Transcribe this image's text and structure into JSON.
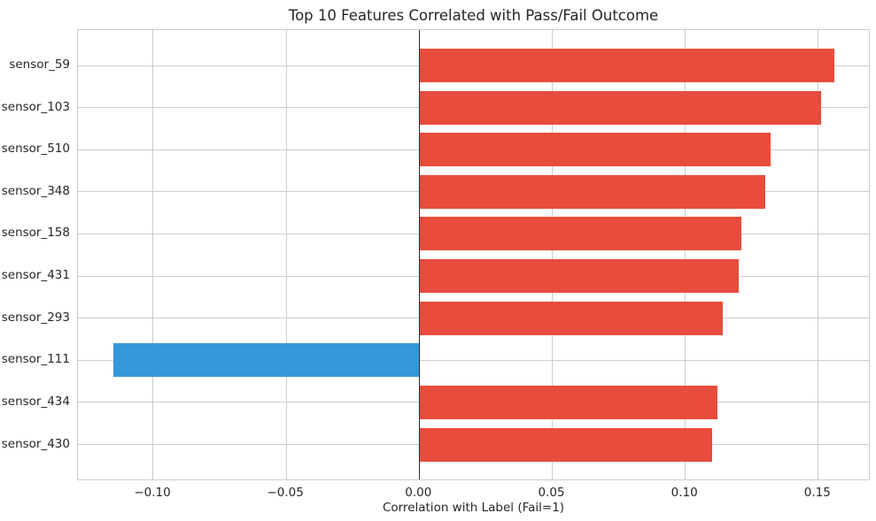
{
  "chart_data": {
    "type": "bar",
    "orientation": "horizontal",
    "title": "Top 10 Features Correlated with Pass/Fail Outcome",
    "xlabel": "Correlation with Label (Fail=1)",
    "ylabel": "",
    "categories": [
      "sensor_59",
      "sensor_103",
      "sensor_510",
      "sensor_348",
      "sensor_158",
      "sensor_431",
      "sensor_293",
      "sensor_111",
      "sensor_434",
      "sensor_430"
    ],
    "values": [
      0.156,
      0.151,
      0.132,
      0.13,
      0.121,
      0.12,
      0.114,
      -0.115,
      0.112,
      0.11
    ],
    "xlim": [
      -0.1283,
      0.1697
    ],
    "x_ticks": [
      -0.1,
      -0.05,
      0.0,
      0.05,
      0.1,
      0.15
    ],
    "x_tick_labels": [
      "−0.10",
      "−0.05",
      "0.00",
      "0.05",
      "0.10",
      "0.15"
    ],
    "grid": true,
    "legend": false,
    "colors": {
      "positive_bar": "#e74c3c",
      "negative_bar": "#3498db",
      "grid": "#cccccc",
      "spine": "#cccccc",
      "zero_line": "#2b2b2b",
      "text": "#262626",
      "background": "#ffffff"
    }
  }
}
